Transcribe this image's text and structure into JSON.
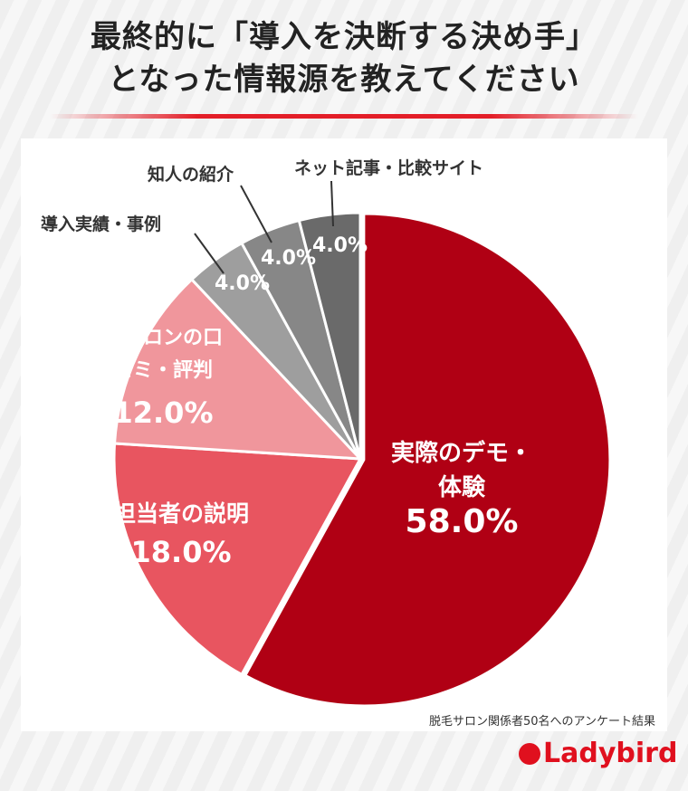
{
  "title": {
    "line1": "最終的に「導入を決断する決め手」",
    "line2": "となった情報源を教えてください"
  },
  "footnote": "脱毛サロン関係者50名へのアンケート結果",
  "logo": "Ladybird",
  "chart_data": {
    "type": "pie",
    "title": "最終的に「導入を決断する決め手」となった情報源を教えてください",
    "slices": [
      {
        "label": "実際のデモ・体験",
        "value": 58.0,
        "pct": "58.0%",
        "color": "#b00014"
      },
      {
        "label": "営業担当者の説明",
        "value": 18.0,
        "pct": "18.0%",
        "color": "#e85560"
      },
      {
        "label": "他サロンの口コミ・評判",
        "value": 12.0,
        "pct": "12.0%",
        "color": "#f0969c"
      },
      {
        "label": "導入実績・事例",
        "value": 4.0,
        "pct": "4.0%",
        "color": "#9e9e9e"
      },
      {
        "label": "知人の紹介",
        "value": 4.0,
        "pct": "4.0%",
        "color": "#878787"
      },
      {
        "label": "ネット記事・比較サイト",
        "value": 4.0,
        "pct": "4.0%",
        "color": "#6a6a6a"
      }
    ]
  }
}
